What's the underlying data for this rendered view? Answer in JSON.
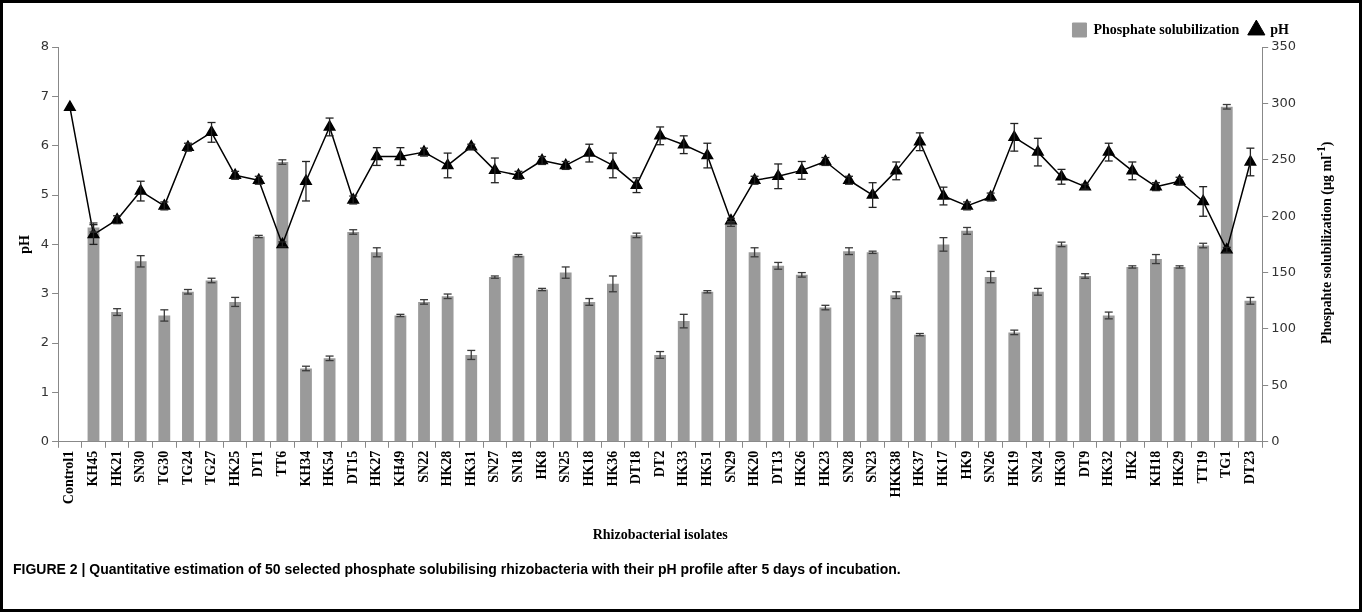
{
  "chart_data": {
    "type": "bar",
    "xlabel": "Rhizobacterial isolates",
    "ylabel": "pH",
    "y2label": "Phospahte solubilization (µg ml$^{-1}$)",
    "categories": [
      "Control1",
      "KH45",
      "HK21",
      "SN30",
      "TG30",
      "TG24",
      "TG27",
      "HK25",
      "DT1",
      "TT6",
      "KH34",
      "HK54",
      "DT15",
      "HK27",
      "KH49",
      "SN22",
      "HK28",
      "HK31",
      "SN27",
      "SN18",
      "HK8",
      "SN25",
      "HK18",
      "HK36",
      "DT18",
      "DT2",
      "HK33",
      "HK51",
      "SN29",
      "HK20",
      "DT13",
      "HK26",
      "HK23",
      "SN28",
      "SN23",
      "HKK38",
      "HK37",
      "HK17",
      "HK9",
      "SN26",
      "HK19",
      "SN24",
      "HK30",
      "DT9",
      "HK32",
      "HK2",
      "KH18",
      "HK29",
      "TT19",
      "TG1",
      "DT23"
    ],
    "series": [
      {
        "name": "Phosphate solubilization",
        "axis": "y2",
        "color": "#9a9a9a",
        "values": [
          null,
          190,
          115,
          160,
          112,
          133,
          143,
          124,
          182,
          248,
          65,
          74,
          186,
          168,
          112,
          124,
          129,
          77,
          146,
          165,
          135,
          150,
          124,
          140,
          183,
          77,
          107,
          133,
          193,
          168,
          156,
          148,
          119,
          169,
          168,
          130,
          95,
          175,
          187,
          146,
          97,
          133,
          175,
          147,
          112,
          155,
          162,
          155,
          174,
          297,
          125
        ],
        "errors": [
          null,
          4,
          3,
          5,
          5,
          2,
          2,
          4,
          1,
          2,
          2,
          2,
          2,
          4,
          1,
          2,
          2,
          4,
          1,
          1,
          1,
          5,
          3,
          7,
          2,
          3,
          6,
          1,
          2,
          4,
          3,
          2,
          2,
          3,
          1,
          3,
          1,
          6,
          3,
          5,
          2,
          3,
          2,
          2,
          3,
          1,
          4,
          1,
          2,
          2,
          3
        ]
      },
      {
        "name": "pH",
        "type": "line",
        "axis": "y",
        "color": "#000000",
        "marker": "triangle",
        "values": [
          6.78,
          4.2,
          4.5,
          5.08,
          4.78,
          5.97,
          6.27,
          5.4,
          5.3,
          4.0,
          5.28,
          6.38,
          4.9,
          5.78,
          5.78,
          5.87,
          5.6,
          5.98,
          5.5,
          5.4,
          5.7,
          5.6,
          5.85,
          5.6,
          5.2,
          6.2,
          6.02,
          5.8,
          4.48,
          5.3,
          5.38,
          5.5,
          5.68,
          5.3,
          5.0,
          5.49,
          6.08,
          4.98,
          4.78,
          4.96,
          6.17,
          5.87,
          5.37,
          5.17,
          5.87,
          5.49,
          5.17,
          5.28,
          4.87,
          3.89,
          5.67
        ],
        "errors": [
          null,
          0.2,
          0.08,
          0.2,
          0.08,
          0.08,
          0.2,
          0.08,
          0.08,
          0.05,
          0.4,
          0.18,
          0.08,
          0.18,
          0.18,
          0.08,
          0.25,
          0.05,
          0.25,
          0.08,
          0.08,
          0.08,
          0.18,
          0.25,
          0.15,
          0.18,
          0.18,
          0.25,
          0.05,
          0.08,
          0.25,
          0.18,
          0.08,
          0.08,
          0.25,
          0.18,
          0.18,
          0.18,
          0.08,
          0.08,
          0.28,
          0.28,
          0.15,
          0.05,
          0.18,
          0.18,
          0.08,
          0.08,
          0.3,
          0.05,
          0.28
        ]
      }
    ],
    "ylim": [
      0,
      8
    ],
    "yticks": [
      0,
      1,
      2,
      3,
      4,
      5,
      6,
      7,
      8
    ],
    "y2lim": [
      0,
      350
    ],
    "y2ticks": [
      0,
      50,
      100,
      150,
      200,
      250,
      300,
      350
    ],
    "grid": false,
    "legend": "top right",
    "annotations": [
      "FIGURE 2 | Quantitative estimation of 50 selected phosphate solubilising rhizobacteria with their pH profile after 5 days of incubation."
    ]
  }
}
